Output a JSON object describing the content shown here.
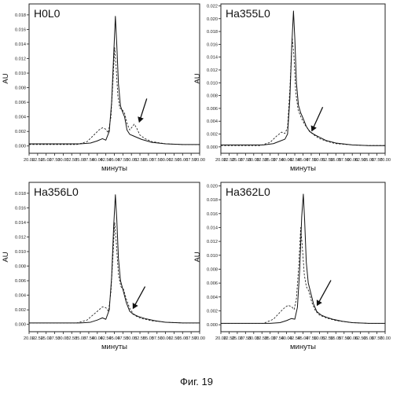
{
  "figure_caption": "Фиг. 19",
  "chart_data": [
    {
      "type": "line",
      "title": "H0L0",
      "xlabel": "минуты",
      "ylabel": "AU",
      "xlim": [
        20,
        70
      ],
      "ylim": [
        -0.001,
        0.0195
      ],
      "x_ticks": [
        "20.00",
        "22.50",
        "25.00",
        "27.50",
        "30.00",
        "32.50",
        "35.00",
        "37.50",
        "40.00",
        "42.50",
        "45.00",
        "47.50",
        "50.00",
        "52.50",
        "55.00",
        "57.50",
        "60.00",
        "62.50",
        "65.00",
        "67.50",
        "70.00"
      ],
      "y_ticks": [
        "0.000",
        "0.002",
        "0.004",
        "0.006",
        "0.008",
        "0.010",
        "0.012",
        "0.014",
        "0.016",
        "0.018"
      ],
      "grid": false,
      "series": [
        {
          "style": "solid",
          "x": [
            20,
            35,
            38,
            40,
            41.5,
            42.5,
            43.5,
            44.2,
            44.8,
            45.3,
            45.7,
            46.2,
            46.8,
            47.3,
            48,
            48.7,
            49.5,
            50.5,
            51.5,
            53,
            56,
            60,
            65,
            70
          ],
          "y": [
            0.0003,
            0.0003,
            0.0004,
            0.0007,
            0.001,
            0.0008,
            0.002,
            0.006,
            0.0125,
            0.0178,
            0.014,
            0.0085,
            0.0055,
            0.0048,
            0.004,
            0.0022,
            0.0016,
            0.0014,
            0.0012,
            0.0009,
            0.0005,
            0.0003,
            0.0002,
            0.0002
          ]
        },
        {
          "style": "dashed",
          "x": [
            20,
            34,
            37,
            39,
            40.5,
            41.5,
            42.5,
            43.2,
            44,
            44.6,
            45.1,
            45.5,
            46,
            46.6,
            47.3,
            48,
            48.8,
            49.5,
            50.2,
            50.8,
            51.5,
            52.5,
            54,
            56,
            60,
            65,
            70
          ],
          "y": [
            0.0002,
            0.0002,
            0.0006,
            0.0015,
            0.0022,
            0.0025,
            0.0023,
            0.0018,
            0.004,
            0.009,
            0.0135,
            0.011,
            0.007,
            0.0052,
            0.005,
            0.0045,
            0.003,
            0.0022,
            0.0026,
            0.003,
            0.0025,
            0.0015,
            0.001,
            0.0006,
            0.0003,
            0.0002,
            0.0002
          ]
        }
      ],
      "annotation": {
        "type": "arrow",
        "from": [
          54.5,
          0.0065
        ],
        "to": [
          52.3,
          0.0033
        ]
      }
    },
    {
      "type": "line",
      "title": "Ha355L0",
      "xlabel": "минуты",
      "ylabel": "AU",
      "xlim": [
        20,
        70
      ],
      "ylim": [
        -0.001,
        0.0223
      ],
      "x_ticks": [
        "20.00",
        "22.50",
        "25.00",
        "27.50",
        "30.00",
        "32.50",
        "35.00",
        "37.50",
        "40.00",
        "42.50",
        "45.00",
        "47.50",
        "50.00",
        "52.50",
        "55.00",
        "57.50",
        "60.00",
        "62.50",
        "65.00",
        "67.50",
        "70.00"
      ],
      "y_ticks": [
        "0.000",
        "0.002",
        "0.004",
        "0.006",
        "0.008",
        "0.010",
        "0.012",
        "0.014",
        "0.016",
        "0.018",
        "0.020",
        "0.022"
      ],
      "grid": false,
      "series": [
        {
          "style": "solid",
          "x": [
            20,
            33,
            36,
            38,
            39.5,
            40.3,
            41,
            41.6,
            42.1,
            42.5,
            43,
            43.6,
            44.3,
            45,
            46,
            47,
            48.5,
            50,
            52,
            55,
            60,
            65,
            70
          ],
          "y": [
            0.0003,
            0.0003,
            0.0005,
            0.0009,
            0.0012,
            0.002,
            0.0075,
            0.016,
            0.0212,
            0.017,
            0.01,
            0.0065,
            0.0053,
            0.0045,
            0.0032,
            0.0024,
            0.0019,
            0.0015,
            0.001,
            0.0006,
            0.0003,
            0.0002,
            0.0002
          ]
        },
        {
          "style": "dashed",
          "x": [
            20,
            32,
            35,
            37,
            38.5,
            39.5,
            40.3,
            41,
            41.7,
            42.2,
            42.8,
            43.5,
            44.5,
            45.5,
            46.5,
            47.5,
            48.5,
            50,
            52,
            55,
            60,
            65,
            70
          ],
          "y": [
            0.0002,
            0.0002,
            0.0007,
            0.0017,
            0.0023,
            0.0021,
            0.003,
            0.009,
            0.017,
            0.0145,
            0.0085,
            0.0058,
            0.0045,
            0.0035,
            0.0028,
            0.0022,
            0.0018,
            0.0013,
            0.0009,
            0.0005,
            0.0003,
            0.0002,
            0.0002
          ]
        }
      ],
      "annotation": {
        "type": "arrow",
        "from": [
          51,
          0.0062
        ],
        "to": [
          47.7,
          0.0025
        ]
      }
    },
    {
      "type": "line",
      "title": "Ha356L0",
      "xlabel": "минуты",
      "ylabel": "AU",
      "xlim": [
        20,
        70
      ],
      "ylim": [
        -0.001,
        0.0195
      ],
      "x_ticks": [
        "20.00",
        "22.50",
        "25.00",
        "27.50",
        "30.00",
        "32.50",
        "35.00",
        "37.50",
        "40.00",
        "42.50",
        "45.00",
        "47.50",
        "50.00",
        "52.50",
        "55.00",
        "57.50",
        "60.00",
        "62.50",
        "65.00",
        "67.50",
        "70.00"
      ],
      "y_ticks": [
        "0.000",
        "0.002",
        "0.004",
        "0.006",
        "0.008",
        "0.010",
        "0.012",
        "0.014",
        "0.016",
        "0.018"
      ],
      "grid": false,
      "series": [
        {
          "style": "solid",
          "x": [
            20,
            35,
            38,
            40,
            41.5,
            42.5,
            43.5,
            44.2,
            44.8,
            45.3,
            45.7,
            46.2,
            46.8,
            47.5,
            48.5,
            49.5,
            50.5,
            52,
            54,
            57,
            60,
            65,
            70
          ],
          "y": [
            0.0002,
            0.0002,
            0.0003,
            0.0006,
            0.0009,
            0.0007,
            0.002,
            0.0065,
            0.0135,
            0.0178,
            0.0145,
            0.009,
            0.006,
            0.0048,
            0.003,
            0.0018,
            0.0014,
            0.0011,
            0.0008,
            0.0005,
            0.0003,
            0.0002,
            0.0002
          ]
        },
        {
          "style": "dashed",
          "x": [
            20,
            34,
            37,
            39,
            40.5,
            41.5,
            42.5,
            43.3,
            44,
            44.6,
            45.1,
            45.6,
            46.2,
            46.9,
            47.7,
            48.5,
            49.5,
            50.5,
            51.5,
            53,
            56,
            60,
            65,
            70
          ],
          "y": [
            0.0002,
            0.0002,
            0.0006,
            0.0014,
            0.002,
            0.0024,
            0.0023,
            0.0018,
            0.0045,
            0.0095,
            0.014,
            0.011,
            0.0068,
            0.0052,
            0.0048,
            0.0035,
            0.0022,
            0.0015,
            0.0011,
            0.0008,
            0.0005,
            0.0003,
            0.0002,
            0.0002
          ]
        }
      ],
      "annotation": {
        "type": "arrow",
        "from": [
          54,
          0.0052
        ],
        "to": [
          50.5,
          0.0022
        ]
      }
    },
    {
      "type": "line",
      "title": "Ha362L0",
      "xlabel": "минуты",
      "ylabel": "AU",
      "xlim": [
        20,
        70
      ],
      "ylim": [
        -0.001,
        0.0205
      ],
      "x_ticks": [
        "20.00",
        "22.50",
        "25.00",
        "27.50",
        "30.00",
        "32.50",
        "35.00",
        "37.50",
        "40.00",
        "42.50",
        "45.00",
        "47.50",
        "50.00",
        "52.50",
        "55.00",
        "57.50",
        "60.00",
        "62.50",
        "65.00",
        "67.50",
        "70.00"
      ],
      "y_ticks": [
        "0.000",
        "0.002",
        "0.004",
        "0.006",
        "0.008",
        "0.010",
        "0.012",
        "0.014",
        "0.016",
        "0.018",
        "0.020"
      ],
      "grid": false,
      "series": [
        {
          "style": "solid",
          "x": [
            20,
            35,
            38,
            40,
            41.5,
            42.5,
            43.3,
            44,
            44.6,
            45.1,
            45.5,
            46,
            46.6,
            47.3,
            48.2,
            49.2,
            50.5,
            52,
            54,
            57,
            60,
            65,
            70
          ],
          "y": [
            0.0002,
            0.0002,
            0.0003,
            0.0006,
            0.0009,
            0.0008,
            0.0025,
            0.008,
            0.0155,
            0.0188,
            0.015,
            0.009,
            0.006,
            0.0047,
            0.003,
            0.0019,
            0.0014,
            0.0011,
            0.0008,
            0.0005,
            0.0003,
            0.0002,
            0.0002
          ]
        },
        {
          "style": "dashed",
          "x": [
            20,
            33,
            36,
            38,
            39.5,
            40.5,
            41.5,
            42.3,
            43,
            43.7,
            44.3,
            44.8,
            45.4,
            46,
            46.8,
            47.7,
            48.8,
            50,
            52,
            55,
            60,
            65,
            70
          ],
          "y": [
            0.0002,
            0.0002,
            0.0008,
            0.0018,
            0.0025,
            0.0028,
            0.0026,
            0.0022,
            0.0038,
            0.0085,
            0.014,
            0.0112,
            0.0072,
            0.0055,
            0.0048,
            0.0032,
            0.002,
            0.0014,
            0.001,
            0.0006,
            0.0003,
            0.0002,
            0.0002
          ]
        }
      ],
      "annotation": {
        "type": "arrow",
        "from": [
          53.5,
          0.0064
        ],
        "to": [
          49.3,
          0.0028
        ]
      }
    }
  ]
}
